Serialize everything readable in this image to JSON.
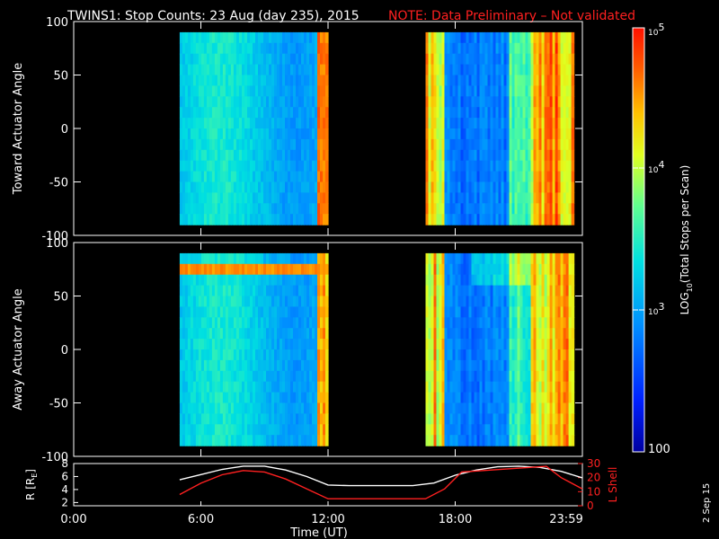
{
  "header": {
    "title": "TWINS1: Stop Counts: 23 Aug (day 235), 2015",
    "note": "NOTE: Data Preliminary – Not validated"
  },
  "side_date": "2 Sep 15",
  "colors": {
    "note": "#ff2020",
    "lshell": "#ff2020",
    "rad": "#ffffff",
    "background": "#000000"
  },
  "colorbar": {
    "label_html": "LOG<sub>10</sub>(Total Stops per Scan)",
    "label_prefix": "LOG",
    "label_sub": "10",
    "label_suffix": "(Total Stops per Scan)",
    "ticks": [
      {
        "base": "10",
        "exp": "5"
      },
      {
        "base": "10",
        "exp": "4"
      },
      {
        "base": "10",
        "exp": "3"
      },
      {
        "base": "100",
        "exp": ""
      }
    ]
  },
  "chart_data": [
    {
      "type": "heatmap",
      "name": "toward",
      "ylabel": "Toward Actuator Angle",
      "ylim": [
        -100,
        100
      ],
      "yticks": [
        "100",
        "50",
        "0",
        "-50",
        "-100"
      ],
      "xlim_hours": [
        0,
        24
      ],
      "data_intervals_hours": [
        [
          5.0,
          12.0
        ],
        [
          16.6,
          23.6
        ]
      ],
      "angle_range": [
        -90,
        90
      ],
      "scale": "log10",
      "value_range": [
        100,
        100000
      ]
    },
    {
      "type": "heatmap",
      "name": "away",
      "ylabel": "Away Actuator Angle",
      "ylim": [
        -100,
        100
      ],
      "yticks": [
        "100",
        "50",
        "0",
        "-50",
        "-100"
      ],
      "xlim_hours": [
        0,
        24
      ],
      "data_intervals_hours": [
        [
          5.0,
          12.0
        ],
        [
          16.6,
          23.6
        ]
      ],
      "angle_range": [
        -90,
        90
      ],
      "scale": "log10",
      "value_range": [
        100,
        100000
      ]
    },
    {
      "type": "line",
      "name": "ephemeris",
      "xlabel": "Time (UT)",
      "xticks": [
        "0:00",
        "6:00",
        "12:00",
        "18:00",
        "23:59"
      ],
      "left_axis": {
        "label": "R [R",
        "label_sub": "E",
        "label_end": "]",
        "ylim": [
          1.5,
          8
        ],
        "ticks": [
          "8",
          "6",
          "4",
          "2"
        ]
      },
      "right_axis": {
        "label": "L Shell",
        "ylim": [
          0,
          30
        ],
        "ticks": [
          "30",
          "20",
          "10",
          "0"
        ]
      },
      "series": [
        {
          "name": "R",
          "axis": "left",
          "x": [
            5.0,
            6.0,
            7.0,
            8.0,
            9.0,
            10.0,
            11.0,
            12.0,
            13.0,
            14.0,
            15.0,
            16.0,
            17.0,
            18.0,
            19.0,
            20.0,
            21.0,
            22.0,
            23.0,
            24.0
          ],
          "y": [
            5.5,
            6.3,
            7.1,
            7.6,
            7.6,
            7.0,
            6.0,
            4.7,
            4.6,
            4.6,
            4.6,
            4.6,
            5.0,
            6.2,
            7.0,
            7.5,
            7.6,
            7.4,
            6.8,
            5.8
          ]
        },
        {
          "name": "L Shell",
          "axis": "right",
          "x": [
            5.0,
            6.0,
            7.0,
            8.0,
            9.0,
            10.0,
            11.0,
            12.0,
            13.0,
            14.0,
            15.0,
            16.0,
            16.6,
            17.5,
            18.3,
            22.3,
            23.0,
            24.0
          ],
          "y": [
            8,
            16,
            22,
            25,
            24,
            19,
            12,
            5,
            5,
            5,
            5,
            5,
            5,
            12,
            24,
            28,
            20,
            12
          ]
        }
      ]
    }
  ]
}
